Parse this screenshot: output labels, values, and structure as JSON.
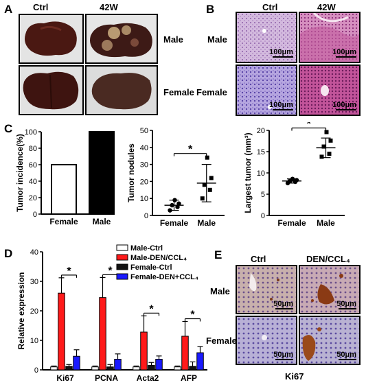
{
  "panels": {
    "A": {
      "label": "A",
      "col_headers": [
        "Ctrl",
        "42W"
      ],
      "row_labels": [
        "Male",
        "Female"
      ]
    },
    "B": {
      "label": "B",
      "col_headers": [
        "Ctrl",
        "42W"
      ],
      "row_labels": [
        "Male",
        "Female"
      ],
      "scale": "100μm"
    },
    "C": {
      "label": "C"
    },
    "D": {
      "label": "D"
    },
    "E": {
      "label": "E",
      "col_headers": [
        "Ctrl",
        "DEN/CCL₄"
      ],
      "row_labels": [
        "Male",
        "Female"
      ],
      "scale": "50μm",
      "caption": "Ki67"
    }
  },
  "colors": {
    "male_ctrl": "#ffffff",
    "male_den": "#ff1a1a",
    "female_ctrl": "#111111",
    "female_den": "#1a1aff",
    "tissue_he": "#c9a8d8",
    "tissue_tumor": "#c2549a",
    "liver": "#4a1a12"
  },
  "chart_data": [
    {
      "type": "bar",
      "id": "tumor_incidence",
      "categories": [
        "Female",
        "Male"
      ],
      "values": [
        60,
        100
      ],
      "ylabel": "Tumor incidence(%)",
      "ylim": [
        0,
        100
      ],
      "yticks": [
        0,
        20,
        40,
        60,
        80,
        100
      ],
      "bar_fill": [
        "#ffffff",
        "#000000"
      ]
    },
    {
      "type": "scatter",
      "id": "tumor_nodules",
      "categories": [
        "Female",
        "Male"
      ],
      "points": [
        [
          3,
          5,
          6,
          7,
          9
        ],
        [
          10,
          15,
          18,
          22,
          34
        ]
      ],
      "mean": [
        6,
        19
      ],
      "sd": [
        3,
        11
      ],
      "ylabel": "Tumor nodules",
      "ylim": [
        0,
        50
      ],
      "yticks": [
        0,
        10,
        20,
        30,
        40,
        50
      ],
      "significance": "*"
    },
    {
      "type": "scatter",
      "id": "largest_tumor",
      "categories": [
        "Female",
        "Male"
      ],
      "points": [
        [
          7.6,
          7.9,
          8.1,
          8.3,
          8.6
        ],
        [
          13.8,
          14.5,
          16.2,
          17.6,
          19.6
        ]
      ],
      "mean": [
        8.1,
        15.9
      ],
      "sd": [
        0.5,
        2.3
      ],
      "ylabel": "Largest tumor (mm³)",
      "ylim": [
        0,
        20
      ],
      "yticks": [
        0,
        5,
        10,
        15,
        20
      ],
      "significance": "*"
    },
    {
      "type": "bar",
      "id": "relative_expression",
      "categories": [
        "Ki67",
        "PCNA",
        "Acta2",
        "AFP"
      ],
      "series": [
        {
          "name": "Male-Ctrl",
          "values": [
            1.0,
            1.0,
            1.0,
            1.0
          ],
          "err": [
            0.3,
            0.3,
            0.3,
            0.3
          ],
          "color": "#ffffff"
        },
        {
          "name": "Male-DEN/CCL₄",
          "values": [
            26,
            24.5,
            12.8,
            11.4
          ],
          "err": [
            5.2,
            6.8,
            5.5,
            5.0
          ],
          "color": "#ff1a1a"
        },
        {
          "name": "Female-Ctrl",
          "values": [
            1.2,
            1.0,
            1.5,
            1.2
          ],
          "err": [
            0.6,
            0.8,
            1.0,
            1.5
          ],
          "color": "#111111"
        },
        {
          "name": "Female-DEN+CCL₄",
          "values": [
            4.6,
            3.6,
            3.6,
            5.8
          ],
          "err": [
            2.2,
            1.8,
            1.1,
            2.1
          ],
          "color": "#1a1aff"
        }
      ],
      "ylabel": "Relative expression",
      "ylim": [
        0,
        40
      ],
      "yticks": [
        0,
        10,
        20,
        30,
        40
      ],
      "significance": "*"
    }
  ]
}
